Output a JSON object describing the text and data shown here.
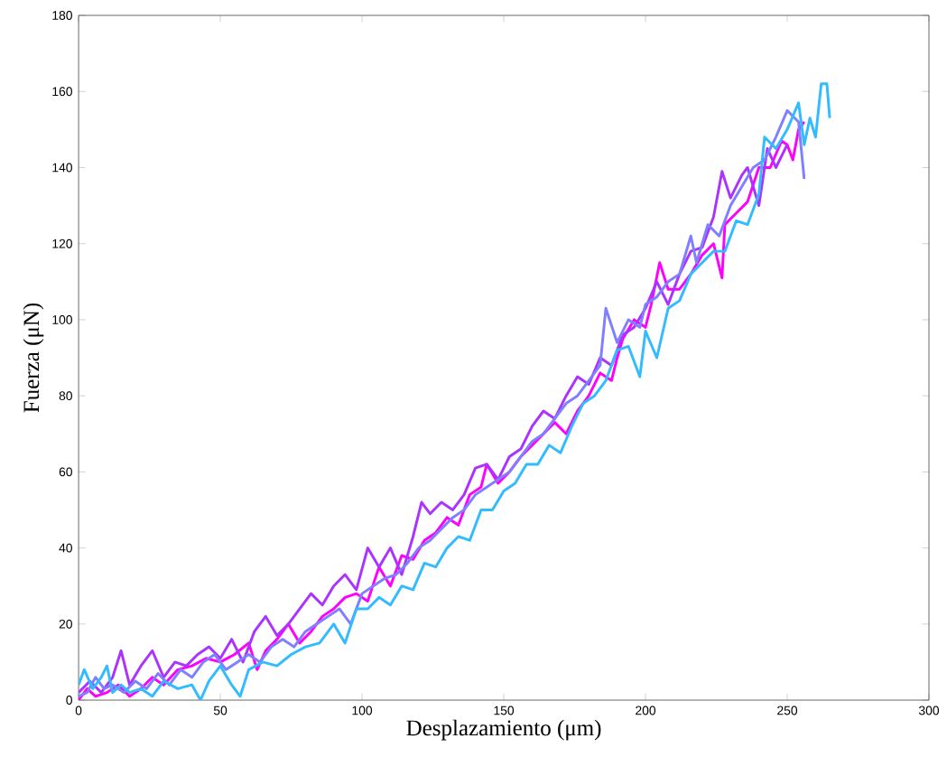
{
  "chart_data": {
    "type": "line",
    "xlabel": "Desplazamiento (μm)",
    "ylabel": "Fuerza (μN)",
    "xlim": [
      0,
      300
    ],
    "ylim": [
      0,
      180
    ],
    "xticks": [
      0,
      50,
      100,
      150,
      200,
      250,
      300
    ],
    "yticks": [
      0,
      20,
      40,
      60,
      80,
      100,
      120,
      140,
      160,
      180
    ],
    "line_style": "solid",
    "series": [
      {
        "color": "#ff00ff",
        "x": [
          0,
          3,
          6,
          10,
          14,
          18,
          22,
          26,
          30,
          35,
          40,
          45,
          50,
          55,
          60,
          63,
          66,
          70,
          74,
          78,
          82,
          86,
          90,
          94,
          98,
          102,
          106,
          110,
          114,
          118,
          122,
          126,
          130,
          134,
          138,
          142,
          144,
          148,
          152,
          156,
          160,
          164,
          168,
          172,
          176,
          180,
          184,
          188,
          190,
          192,
          196,
          200,
          202,
          205,
          208,
          212,
          216,
          220,
          224,
          227,
          228,
          232,
          236,
          240,
          244,
          248,
          250,
          252,
          254,
          256
        ],
        "values": [
          0,
          3,
          1,
          2,
          4,
          1,
          3,
          6,
          4,
          8,
          9,
          11,
          10,
          12,
          15,
          8,
          13,
          16,
          20,
          15,
          18,
          22,
          24,
          27,
          28,
          26,
          35,
          30,
          38,
          37,
          42,
          44,
          48,
          46,
          54,
          56,
          62,
          57,
          60,
          64,
          67,
          70,
          73,
          70,
          76,
          80,
          86,
          84,
          90,
          95,
          100,
          98,
          104,
          115,
          108,
          108,
          112,
          117,
          120,
          111,
          125,
          128,
          131,
          140,
          140,
          147,
          146,
          142,
          150,
          152
        ]
      },
      {
        "color": "#aa33ff",
        "x": [
          0,
          4,
          8,
          12,
          15,
          18,
          22,
          26,
          30,
          34,
          38,
          42,
          46,
          50,
          54,
          58,
          62,
          66,
          70,
          74,
          78,
          82,
          86,
          90,
          94,
          98,
          102,
          106,
          110,
          114,
          118,
          121,
          124,
          128,
          132,
          136,
          140,
          144,
          148,
          152,
          156,
          160,
          164,
          168,
          172,
          176,
          180,
          184,
          188,
          192,
          196,
          200,
          204,
          208,
          212,
          216,
          220,
          224,
          227,
          230,
          234,
          236,
          240,
          243,
          246,
          250
        ],
        "values": [
          2,
          5,
          2,
          6,
          13,
          4,
          9,
          13,
          6,
          10,
          9,
          12,
          14,
          11,
          16,
          10,
          18,
          22,
          17,
          20,
          24,
          28,
          25,
          30,
          33,
          29,
          40,
          35,
          40,
          33,
          43,
          52,
          49,
          52,
          50,
          54,
          61,
          62,
          58,
          64,
          66,
          72,
          76,
          74,
          80,
          85,
          83,
          90,
          88,
          96,
          98,
          103,
          110,
          104,
          112,
          118,
          119,
          127,
          139,
          132,
          138,
          140,
          130,
          145,
          140,
          146
        ]
      },
      {
        "color": "#7f7fff",
        "x": [
          0,
          3,
          6,
          9,
          12,
          16,
          20,
          24,
          28,
          32,
          36,
          40,
          44,
          48,
          52,
          56,
          60,
          64,
          68,
          72,
          76,
          80,
          84,
          88,
          92,
          96,
          100,
          104,
          108,
          112,
          116,
          120,
          124,
          128,
          132,
          136,
          140,
          144,
          148,
          152,
          156,
          160,
          164,
          168,
          172,
          176,
          180,
          184,
          186,
          190,
          194,
          198,
          200,
          204,
          208,
          212,
          216,
          218,
          222,
          226,
          230,
          234,
          238,
          242,
          246,
          250,
          254,
          256
        ],
        "values": [
          1,
          2,
          6,
          3,
          4,
          2,
          5,
          3,
          7,
          4,
          8,
          6,
          10,
          12,
          8,
          10,
          12,
          10,
          14,
          16,
          14,
          18,
          20,
          22,
          24,
          20,
          28,
          30,
          32,
          33,
          36,
          40,
          42,
          45,
          48,
          50,
          54,
          56,
          58,
          60,
          64,
          68,
          70,
          74,
          78,
          80,
          84,
          88,
          103,
          94,
          100,
          98,
          104,
          106,
          110,
          112,
          122,
          115,
          125,
          122,
          130,
          135,
          140,
          142,
          148,
          155,
          152,
          137
        ]
      },
      {
        "color": "#33bbff",
        "x": [
          0,
          2,
          5,
          8,
          10,
          12,
          15,
          18,
          22,
          26,
          30,
          35,
          40,
          43,
          46,
          50,
          54,
          57,
          60,
          65,
          70,
          75,
          80,
          85,
          90,
          94,
          98,
          102,
          106,
          110,
          114,
          118,
          122,
          126,
          130,
          134,
          138,
          142,
          146,
          150,
          154,
          158,
          162,
          166,
          170,
          174,
          178,
          182,
          186,
          190,
          194,
          198,
          200,
          204,
          208,
          212,
          216,
          220,
          224,
          228,
          232,
          236,
          240,
          242,
          246,
          250,
          254,
          256,
          258,
          260,
          262,
          264,
          265
        ],
        "values": [
          4,
          8,
          3,
          6,
          9,
          2,
          4,
          2,
          3,
          1,
          5,
          3,
          4,
          0,
          5,
          9,
          4,
          1,
          8,
          10,
          9,
          12,
          14,
          15,
          20,
          15,
          24,
          24,
          27,
          25,
          30,
          29,
          36,
          35,
          40,
          43,
          42,
          50,
          50,
          55,
          57,
          62,
          62,
          67,
          65,
          72,
          78,
          80,
          84,
          92,
          93,
          85,
          97,
          90,
          103,
          105,
          112,
          115,
          118,
          118,
          126,
          125,
          133,
          148,
          145,
          150,
          157,
          146,
          153,
          148,
          162,
          162,
          153
        ]
      }
    ]
  }
}
